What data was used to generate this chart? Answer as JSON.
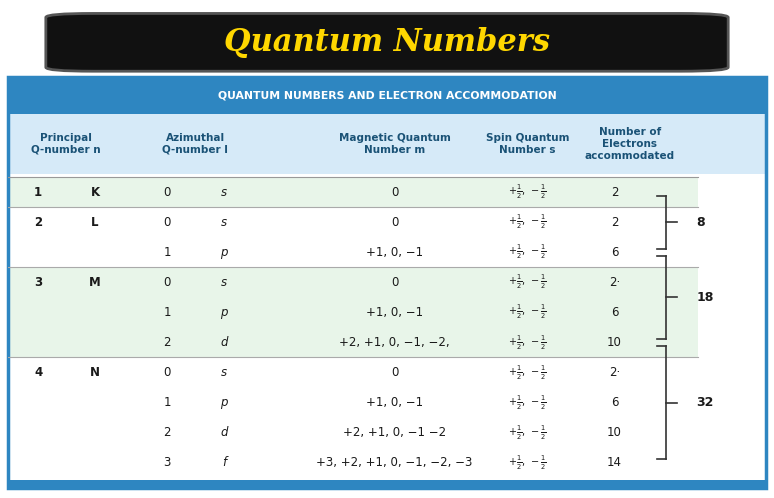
{
  "title": "Quantum Numbers",
  "title_color": "#FFD700",
  "title_bg": "#111111",
  "header_row": "QUANTUM NUMBERS AND ELECTRON ACCOMMODATION",
  "header_bg": "#2E86C1",
  "header_text_color": "#FFFFFF",
  "col_headers": [
    "Principal\nQ-number n",
    "Azimuthal\nQ-number l",
    "Magnetic Quantum\nNumber m",
    "Spin Quantum\nNumber s",
    "Number of\nElectrons\naccommodated"
  ],
  "col_header_color": "#1A5276",
  "col_header_bg": "#D6EAF8",
  "row_bg_green": "#E8F5E9",
  "row_bg_white": "#FFFFFF",
  "separator_color": "#AAAAAA",
  "rows": [
    [
      "1",
      "K",
      "0",
      "s",
      "0",
      "2",
      ""
    ],
    [
      "2",
      "L",
      "0",
      "s",
      "0",
      "2",
      "8_top"
    ],
    [
      "",
      "",
      "1",
      "p",
      "+1, 0, −1",
      "6",
      "8_bot"
    ],
    [
      "3",
      "M",
      "0",
      "s",
      "0",
      "2·",
      "18_top"
    ],
    [
      "",
      "",
      "1",
      "p",
      "+1, 0, −1",
      "6",
      "18_mid"
    ],
    [
      "",
      "",
      "2",
      "d",
      "+2, +1, 0, −1, −2,",
      "10",
      "18_bot"
    ],
    [
      "4",
      "N",
      "0",
      "s",
      "0",
      "2·",
      "32_top"
    ],
    [
      "",
      "",
      "1",
      "p",
      "+1, 0, −1",
      "6",
      "32_mid"
    ],
    [
      "",
      "",
      "2",
      "d",
      "+2, +1, 0, −1 −2",
      "10",
      "32_mid"
    ],
    [
      "",
      "",
      "3",
      "f",
      "+3, +2, +1, 0, −1, −2, −3",
      "14",
      "32_bot"
    ]
  ],
  "brace_groups": [
    [
      1,
      2,
      "8"
    ],
    [
      3,
      5,
      "18"
    ],
    [
      6,
      9,
      "32"
    ]
  ],
  "group_ranges": [
    [
      0,
      0,
      "#E8F5E9"
    ],
    [
      1,
      2,
      "#FFFFFF"
    ],
    [
      3,
      5,
      "#E8F5E9"
    ],
    [
      6,
      9,
      "#FFFFFF"
    ]
  ]
}
